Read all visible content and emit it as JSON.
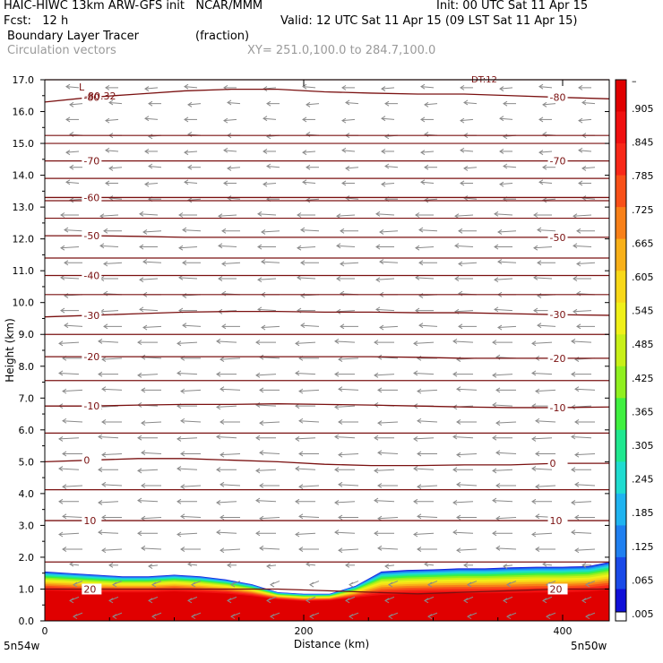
{
  "header": {
    "title_left": "HAIC-HIWC 13km ARW-GFS init   NCAR/MMM",
    "init_label": "Init: 00 UTC Sat 11 Apr 15",
    "fcst_label": "Fcst:   12 h",
    "valid_label": "Valid: 12 UTC Sat 11 Apr 15 (09 LST Sat 11 Apr 15)",
    "field_name": "Boundary Layer Tracer",
    "field_units": "(fraction)",
    "vector_label": "Circulation vectors",
    "xsec_label": "XY= 251.0,100.0 to 284.7,100.0"
  },
  "chart_data": {
    "type": "heatmap",
    "xlabel": "Distance (km)",
    "ylabel": "Height (km)",
    "xlim": [
      0,
      436
    ],
    "ylim": [
      0,
      17
    ],
    "x_ticks": [
      0,
      200,
      400
    ],
    "y_ticks": [
      "0.0",
      "1.0",
      "2.0",
      "3.0",
      "4.0",
      "5.0",
      "6.0",
      "7.0",
      "8.0",
      "9.0",
      "10.0",
      "11.0",
      "12.0",
      "13.0",
      "14.0",
      "15.0",
      "16.0",
      "17.0"
    ],
    "endpoint_left": "5n54w",
    "endpoint_right": "5n50w",
    "colorbar": {
      "labels": [
        ".005",
        ".065",
        ".125",
        ".185",
        ".245",
        ".305",
        ".365",
        ".425",
        ".485",
        ".545",
        ".605",
        ".665",
        ".725",
        ".785",
        ".845",
        ".905"
      ],
      "colors": [
        "#1010d8",
        "#1a4ae8",
        "#2080f0",
        "#20b4f0",
        "#20dcd0",
        "#20e890",
        "#40f040",
        "#90f020",
        "#c8f018",
        "#f0f018",
        "#f8d818",
        "#f8b018",
        "#f88018",
        "#f85018",
        "#f82818",
        "#f01010",
        "#e00000"
      ],
      "top_label": "–"
    },
    "tracer_layer": {
      "description_free": true,
      "x": [
        0,
        20,
        40,
        60,
        80,
        100,
        120,
        140,
        160,
        180,
        200,
        220,
        240,
        260,
        280,
        300,
        320,
        340,
        360,
        380,
        400,
        420,
        436
      ],
      "top_height": [
        1.55,
        1.5,
        1.45,
        1.4,
        1.4,
        1.45,
        1.4,
        1.3,
        1.15,
        0.9,
        0.85,
        0.85,
        1.1,
        1.55,
        1.6,
        1.62,
        1.65,
        1.65,
        1.68,
        1.7,
        1.7,
        1.72,
        1.85
      ],
      "core_height": [
        0.9,
        0.88,
        0.85,
        0.85,
        0.85,
        0.88,
        0.85,
        0.82,
        0.75,
        0.65,
        0.6,
        0.62,
        0.7,
        0.75,
        0.78,
        0.8,
        0.8,
        0.8,
        0.8,
        0.82,
        0.82,
        0.85,
        0.9
      ]
    },
    "temperature_contours": [
      {
        "label": "20",
        "y": [
          1.0,
          1.0,
          1.0,
          1.0,
          1.0,
          1.0,
          0.95,
          0.9,
          0.85,
          0.9,
          0.95,
          1.0,
          1.0
        ],
        "label_left": true,
        "label_right": true
      },
      {
        "label": "10",
        "y": [
          3.15,
          3.15,
          3.15,
          3.15,
          3.15,
          3.15,
          3.15,
          3.15,
          3.15,
          3.15,
          3.15,
          3.15,
          3.15
        ],
        "label_left": true,
        "label_right": true
      },
      {
        "label": "0",
        "y": [
          5.0,
          5.05,
          5.1,
          5.1,
          5.05,
          5.0,
          4.92,
          4.88,
          4.88,
          4.9,
          4.9,
          4.95,
          4.95
        ],
        "label_left": true,
        "label_right": true
      },
      {
        "label": "-10",
        "y": [
          6.75,
          6.75,
          6.78,
          6.8,
          6.8,
          6.82,
          6.8,
          6.78,
          6.75,
          6.72,
          6.7,
          6.7,
          6.72
        ],
        "label_left": true,
        "label_right": true
      },
      {
        "label": "-20",
        "y": [
          8.3,
          8.3,
          8.3,
          8.3,
          8.3,
          8.3,
          8.3,
          8.3,
          8.28,
          8.25,
          8.25,
          8.25,
          8.25
        ],
        "label_left": true,
        "label_right": true
      },
      {
        "label": "-30",
        "y": [
          9.55,
          9.6,
          9.65,
          9.7,
          9.72,
          9.72,
          9.7,
          9.7,
          9.68,
          9.68,
          9.65,
          9.62,
          9.6
        ],
        "label_left": true,
        "label_right": true
      },
      {
        "label": "-40",
        "y": [
          10.85,
          10.85,
          10.85,
          10.85,
          10.85,
          10.85,
          10.85,
          10.85,
          10.85,
          10.85,
          10.85,
          10.85,
          10.85
        ],
        "label_left": true,
        "label_right": false
      },
      {
        "label": "-50",
        "y": [
          12.1,
          12.1,
          12.08,
          12.05,
          12.05,
          12.05,
          12.05,
          12.05,
          12.05,
          12.05,
          12.05,
          12.05,
          12.05
        ],
        "label_left": true,
        "label_right": true
      },
      {
        "label": "-60",
        "y": [
          13.3,
          13.3,
          13.3,
          13.3,
          13.3,
          13.3,
          13.3,
          13.3,
          13.3,
          13.3,
          13.3,
          13.3,
          13.3
        ],
        "label_left": true,
        "label_right": false
      },
      {
        "label": "-70",
        "y": [
          14.45,
          14.45,
          14.45,
          14.45,
          14.45,
          14.45,
          14.45,
          14.45,
          14.45,
          14.45,
          14.45,
          14.45,
          14.45
        ],
        "label_left": true,
        "label_right": true
      },
      {
        "label": "-80",
        "y": [
          16.3,
          16.45,
          16.55,
          16.65,
          16.7,
          16.7,
          16.62,
          16.58,
          16.55,
          16.55,
          16.5,
          16.45,
          16.4
        ],
        "label_left": true,
        "label_right": true
      }
    ],
    "contour_x": [
      0,
      36,
      72,
      108,
      144,
      180,
      216,
      252,
      288,
      324,
      360,
      396,
      436
    ],
    "other_lines_y": [
      17.0,
      15.25,
      15.0,
      13.9,
      13.2,
      12.65,
      11.4,
      10.25,
      9.0,
      7.55,
      5.9,
      4.12,
      1.85
    ],
    "min_annotation": "L",
    "min_value_label": "-80.32",
    "top_annotation": "DT:12"
  }
}
